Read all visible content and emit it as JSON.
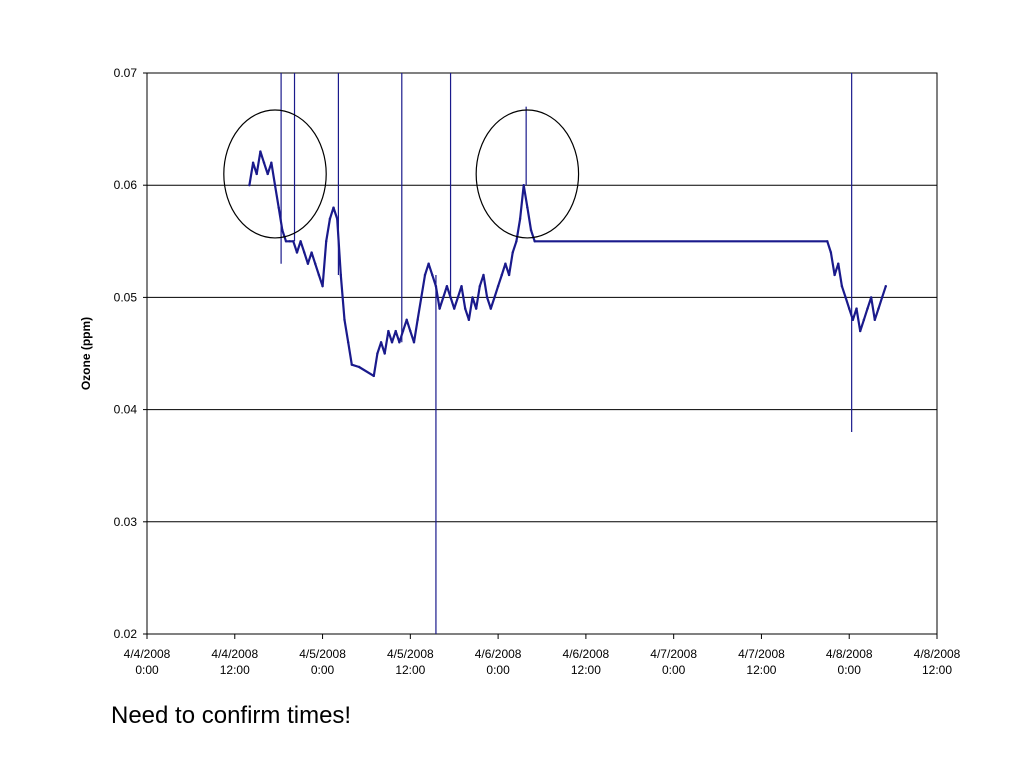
{
  "slide": {
    "note": "Need to confirm times!"
  },
  "chart_data": {
    "type": "line",
    "title": "",
    "xlabel": "",
    "ylabel": "Ozone (ppm)",
    "ylim": [
      0.02,
      0.07
    ],
    "yticks": [
      0.02,
      0.03,
      0.04,
      0.05,
      0.06,
      0.07
    ],
    "ytick_labels": [
      "0.02",
      "0.03",
      "0.04",
      "0.05",
      "0.06",
      "0.07"
    ],
    "xlim": [
      "2008-04-04T00:00",
      "2008-04-08T12:00"
    ],
    "xticks": [
      "2008-04-04T00:00",
      "2008-04-04T12:00",
      "2008-04-05T00:00",
      "2008-04-05T12:00",
      "2008-04-06T00:00",
      "2008-04-06T12:00",
      "2008-04-07T00:00",
      "2008-04-07T12:00",
      "2008-04-08T00:00",
      "2008-04-08T12:00"
    ],
    "xtick_labels": [
      [
        "4/4/2008",
        "0:00"
      ],
      [
        "4/4/2008",
        "12:00"
      ],
      [
        "4/5/2008",
        "0:00"
      ],
      [
        "4/5/2008",
        "12:00"
      ],
      [
        "4/6/2008",
        "0:00"
      ],
      [
        "4/6/2008",
        "12:00"
      ],
      [
        "4/7/2008",
        "0:00"
      ],
      [
        "4/7/2008",
        "12:00"
      ],
      [
        "4/8/2008",
        "0:00"
      ],
      [
        "4/8/2008",
        "12:00"
      ]
    ],
    "grid": "horizontal",
    "line_color": "#1a1a8c",
    "series": [
      {
        "values": [
          [
            "2008-04-04T14:00",
            0.06
          ],
          [
            "2008-04-04T14:30",
            0.062
          ],
          [
            "2008-04-04T15:00",
            0.061
          ],
          [
            "2008-04-04T15:30",
            0.063
          ],
          [
            "2008-04-04T16:00",
            0.062
          ],
          [
            "2008-04-04T16:30",
            0.061
          ],
          [
            "2008-04-04T17:00",
            0.062
          ],
          [
            "2008-04-04T17:30",
            0.06
          ],
          [
            "2008-04-04T18:00",
            0.058
          ],
          [
            "2008-04-04T18:30",
            0.056
          ],
          [
            "2008-04-04T19:00",
            0.055
          ],
          [
            "2008-04-04T19:30",
            0.055
          ],
          [
            "2008-04-04T20:00",
            0.055
          ],
          [
            "2008-04-04T20:30",
            0.054
          ],
          [
            "2008-04-04T21:00",
            0.055
          ],
          [
            "2008-04-04T21:30",
            0.054
          ],
          [
            "2008-04-04T22:00",
            0.053
          ],
          [
            "2008-04-04T22:30",
            0.054
          ],
          [
            "2008-04-04T23:00",
            0.053
          ],
          [
            "2008-04-04T23:30",
            0.052
          ],
          [
            "2008-04-05T00:00",
            0.051
          ],
          [
            "2008-04-05T00:30",
            0.055
          ],
          [
            "2008-04-05T01:00",
            0.057
          ],
          [
            "2008-04-05T01:30",
            0.058
          ],
          [
            "2008-04-05T02:00",
            0.057
          ],
          [
            "2008-04-05T02:30",
            0.052
          ],
          [
            "2008-04-05T03:00",
            0.048
          ],
          [
            "2008-04-05T03:30",
            0.046
          ],
          [
            "2008-04-05T04:00",
            0.044
          ],
          [
            "2008-04-05T05:00",
            0.0438
          ],
          [
            "2008-04-05T07:00",
            0.043
          ],
          [
            "2008-04-05T07:30",
            0.045
          ],
          [
            "2008-04-05T08:00",
            0.046
          ],
          [
            "2008-04-05T08:30",
            0.045
          ],
          [
            "2008-04-05T09:00",
            0.047
          ],
          [
            "2008-04-05T09:30",
            0.046
          ],
          [
            "2008-04-05T10:00",
            0.047
          ],
          [
            "2008-04-05T10:30",
            0.046
          ],
          [
            "2008-04-05T11:00",
            0.047
          ],
          [
            "2008-04-05T11:30",
            0.048
          ],
          [
            "2008-04-05T12:00",
            0.047
          ],
          [
            "2008-04-05T12:30",
            0.046
          ],
          [
            "2008-04-05T13:00",
            0.048
          ],
          [
            "2008-04-05T13:30",
            0.05
          ],
          [
            "2008-04-05T14:00",
            0.052
          ],
          [
            "2008-04-05T14:30",
            0.053
          ],
          [
            "2008-04-05T15:00",
            0.052
          ],
          [
            "2008-04-05T15:30",
            0.051
          ],
          [
            "2008-04-05T16:00",
            0.049
          ],
          [
            "2008-04-05T16:30",
            0.05
          ],
          [
            "2008-04-05T17:00",
            0.051
          ],
          [
            "2008-04-05T17:30",
            0.05
          ],
          [
            "2008-04-05T18:00",
            0.049
          ],
          [
            "2008-04-05T18:30",
            0.05
          ],
          [
            "2008-04-05T19:00",
            0.051
          ],
          [
            "2008-04-05T19:30",
            0.049
          ],
          [
            "2008-04-05T20:00",
            0.048
          ],
          [
            "2008-04-05T20:30",
            0.05
          ],
          [
            "2008-04-05T21:00",
            0.049
          ],
          [
            "2008-04-05T21:30",
            0.051
          ],
          [
            "2008-04-05T22:00",
            0.052
          ],
          [
            "2008-04-05T22:30",
            0.05
          ],
          [
            "2008-04-05T23:00",
            0.049
          ],
          [
            "2008-04-05T23:30",
            0.05
          ],
          [
            "2008-04-06T00:00",
            0.051
          ],
          [
            "2008-04-06T00:30",
            0.052
          ],
          [
            "2008-04-06T01:00",
            0.053
          ],
          [
            "2008-04-06T01:30",
            0.052
          ],
          [
            "2008-04-06T02:00",
            0.054
          ],
          [
            "2008-04-06T02:30",
            0.055
          ],
          [
            "2008-04-06T03:00",
            0.057
          ],
          [
            "2008-04-06T03:30",
            0.06
          ],
          [
            "2008-04-06T04:00",
            0.058
          ],
          [
            "2008-04-06T04:30",
            0.056
          ],
          [
            "2008-04-06T05:00",
            0.055
          ],
          [
            "2008-04-07T21:00",
            0.055
          ],
          [
            "2008-04-07T21:30",
            0.054
          ],
          [
            "2008-04-07T22:00",
            0.052
          ],
          [
            "2008-04-07T22:30",
            0.053
          ],
          [
            "2008-04-07T23:00",
            0.051
          ],
          [
            "2008-04-07T23:30",
            0.05
          ],
          [
            "2008-04-08T00:00",
            0.049
          ],
          [
            "2008-04-08T00:30",
            0.048
          ],
          [
            "2008-04-08T01:00",
            0.049
          ],
          [
            "2008-04-08T01:30",
            0.047
          ],
          [
            "2008-04-08T02:00",
            0.048
          ],
          [
            "2008-04-08T02:30",
            0.049
          ],
          [
            "2008-04-08T03:00",
            0.05
          ],
          [
            "2008-04-08T03:30",
            0.048
          ],
          [
            "2008-04-08T04:00",
            0.049
          ],
          [
            "2008-04-08T04:30",
            0.05
          ],
          [
            "2008-04-08T05:00",
            0.051
          ]
        ]
      }
    ],
    "spikes": [
      {
        "x": "2008-04-04T18:20",
        "ymin": 0.053,
        "ymax": 0.07
      },
      {
        "x": "2008-04-04T20:10",
        "ymin": 0.055,
        "ymax": 0.07
      },
      {
        "x": "2008-04-05T02:10",
        "ymin": 0.052,
        "ymax": 0.07
      },
      {
        "x": "2008-04-05T10:50",
        "ymin": 0.046,
        "ymax": 0.07
      },
      {
        "x": "2008-04-05T15:30",
        "ymin": 0.02,
        "ymax": 0.052
      },
      {
        "x": "2008-04-05T17:30",
        "ymin": 0.05,
        "ymax": 0.07
      },
      {
        "x": "2008-04-06T03:50",
        "ymin": 0.06,
        "ymax": 0.067
      },
      {
        "x": "2008-04-08T00:20",
        "ymin": 0.038,
        "ymax": 0.07
      }
    ],
    "annotations": [
      {
        "type": "ellipse",
        "cx": "2008-04-04T17:30",
        "cy": 0.061,
        "rx_hours": 7,
        "ry": 0.0057
      },
      {
        "type": "ellipse",
        "cx": "2008-04-06T04:00",
        "cy": 0.061,
        "rx_hours": 7,
        "ry": 0.0057
      }
    ]
  }
}
